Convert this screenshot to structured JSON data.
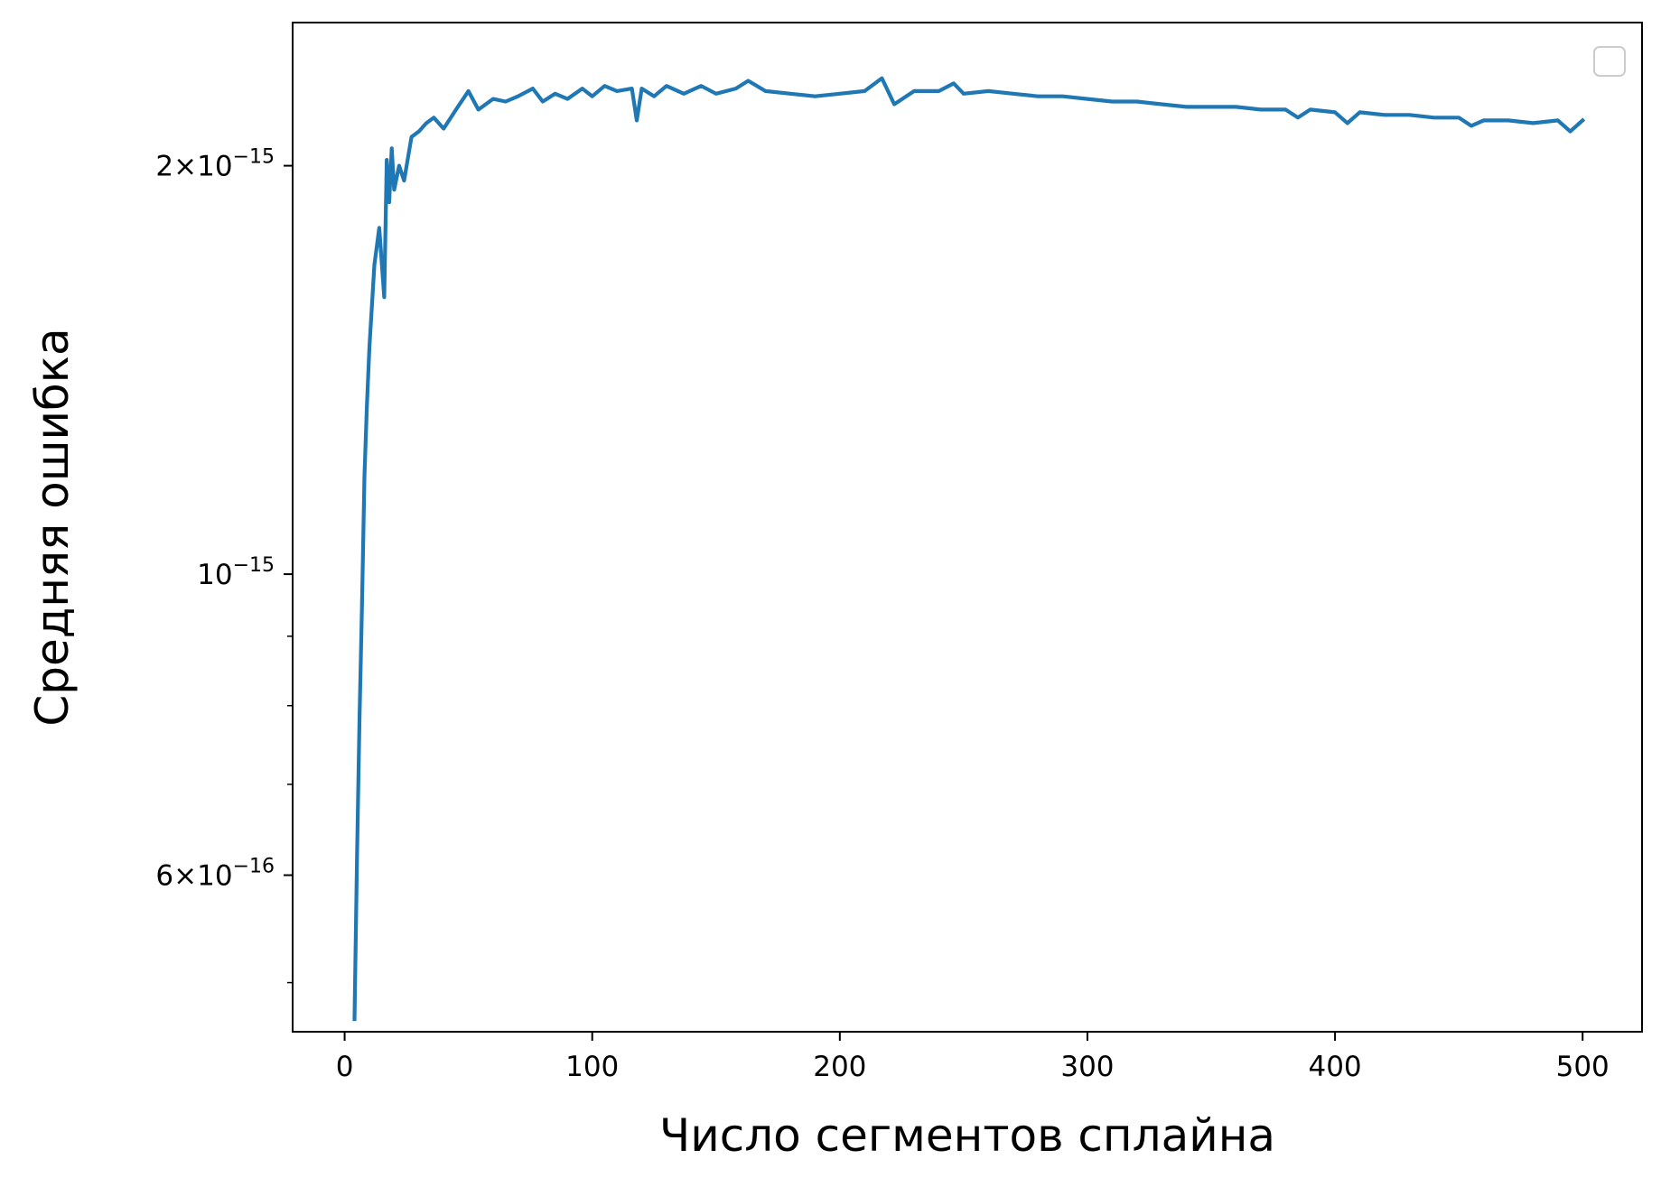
{
  "chart_data": {
    "type": "line",
    "title": "",
    "xlabel": "Число сегментов сплайна",
    "ylabel": "Средняя ошибка",
    "yscale": "log",
    "xlim": [
      -21,
      524
    ],
    "ylim": [
      4.6e-16,
      2.55e-15
    ],
    "xticks": [
      {
        "value": 0,
        "label": "0"
      },
      {
        "value": 100,
        "label": "100"
      },
      {
        "value": 200,
        "label": "200"
      },
      {
        "value": 300,
        "label": "300"
      },
      {
        "value": 400,
        "label": "400"
      },
      {
        "value": 500,
        "label": "500"
      }
    ],
    "yticks_major": [
      {
        "value": 2e-15,
        "mant": "2",
        "base": "10",
        "exp": "−15"
      },
      {
        "value": 1e-15,
        "mant": "",
        "base": "10",
        "exp": "−15"
      },
      {
        "value": 6e-16,
        "mant": "6",
        "base": "10",
        "exp": "−16"
      }
    ],
    "yticks_minor": [
      5e-16,
      7e-16,
      8e-16,
      9e-16
    ],
    "grid": false,
    "legend": {
      "placement": "top-right",
      "entries": []
    },
    "series": [
      {
        "color": "#1f77b4",
        "x": [
          4,
          5,
          6,
          7,
          8,
          9,
          10,
          12,
          14,
          16,
          17,
          18,
          19,
          20,
          22,
          24,
          27,
          30,
          33,
          36,
          40,
          45,
          50,
          54,
          60,
          65,
          70,
          76,
          80,
          85,
          90,
          96,
          100,
          105,
          110,
          116,
          118,
          120,
          125,
          130,
          137,
          144,
          150,
          158,
          163,
          170,
          180,
          190,
          200,
          210,
          217,
          222,
          230,
          240,
          246,
          250,
          260,
          270,
          280,
          290,
          300,
          310,
          320,
          330,
          340,
          350,
          360,
          370,
          380,
          385,
          390,
          400,
          405,
          410,
          420,
          430,
          440,
          450,
          455,
          460,
          470,
          480,
          490,
          495,
          500
        ],
        "y": [
          4.7e-16,
          6.2e-16,
          7.8e-16,
          9.5e-16,
          1.18e-15,
          1.33e-15,
          1.47e-15,
          1.69e-15,
          1.8e-15,
          1.6e-15,
          2.02e-15,
          1.88e-15,
          2.06e-15,
          1.92e-15,
          2e-15,
          1.95e-15,
          2.1e-15,
          2.12e-15,
          2.15e-15,
          2.17e-15,
          2.13e-15,
          2.2e-15,
          2.27e-15,
          2.2e-15,
          2.24e-15,
          2.23e-15,
          2.25e-15,
          2.28e-15,
          2.23e-15,
          2.26e-15,
          2.24e-15,
          2.28e-15,
          2.25e-15,
          2.29e-15,
          2.27e-15,
          2.28e-15,
          2.16e-15,
          2.28e-15,
          2.25e-15,
          2.29e-15,
          2.26e-15,
          2.29e-15,
          2.26e-15,
          2.28e-15,
          2.31e-15,
          2.27e-15,
          2.26e-15,
          2.25e-15,
          2.26e-15,
          2.27e-15,
          2.32e-15,
          2.22e-15,
          2.27e-15,
          2.27e-15,
          2.3e-15,
          2.26e-15,
          2.27e-15,
          2.26e-15,
          2.25e-15,
          2.25e-15,
          2.24e-15,
          2.23e-15,
          2.23e-15,
          2.22e-15,
          2.21e-15,
          2.21e-15,
          2.21e-15,
          2.2e-15,
          2.2e-15,
          2.17e-15,
          2.2e-15,
          2.19e-15,
          2.15e-15,
          2.19e-15,
          2.18e-15,
          2.18e-15,
          2.17e-15,
          2.17e-15,
          2.14e-15,
          2.16e-15,
          2.16e-15,
          2.15e-15,
          2.16e-15,
          2.12e-15,
          2.16e-15
        ]
      }
    ]
  }
}
